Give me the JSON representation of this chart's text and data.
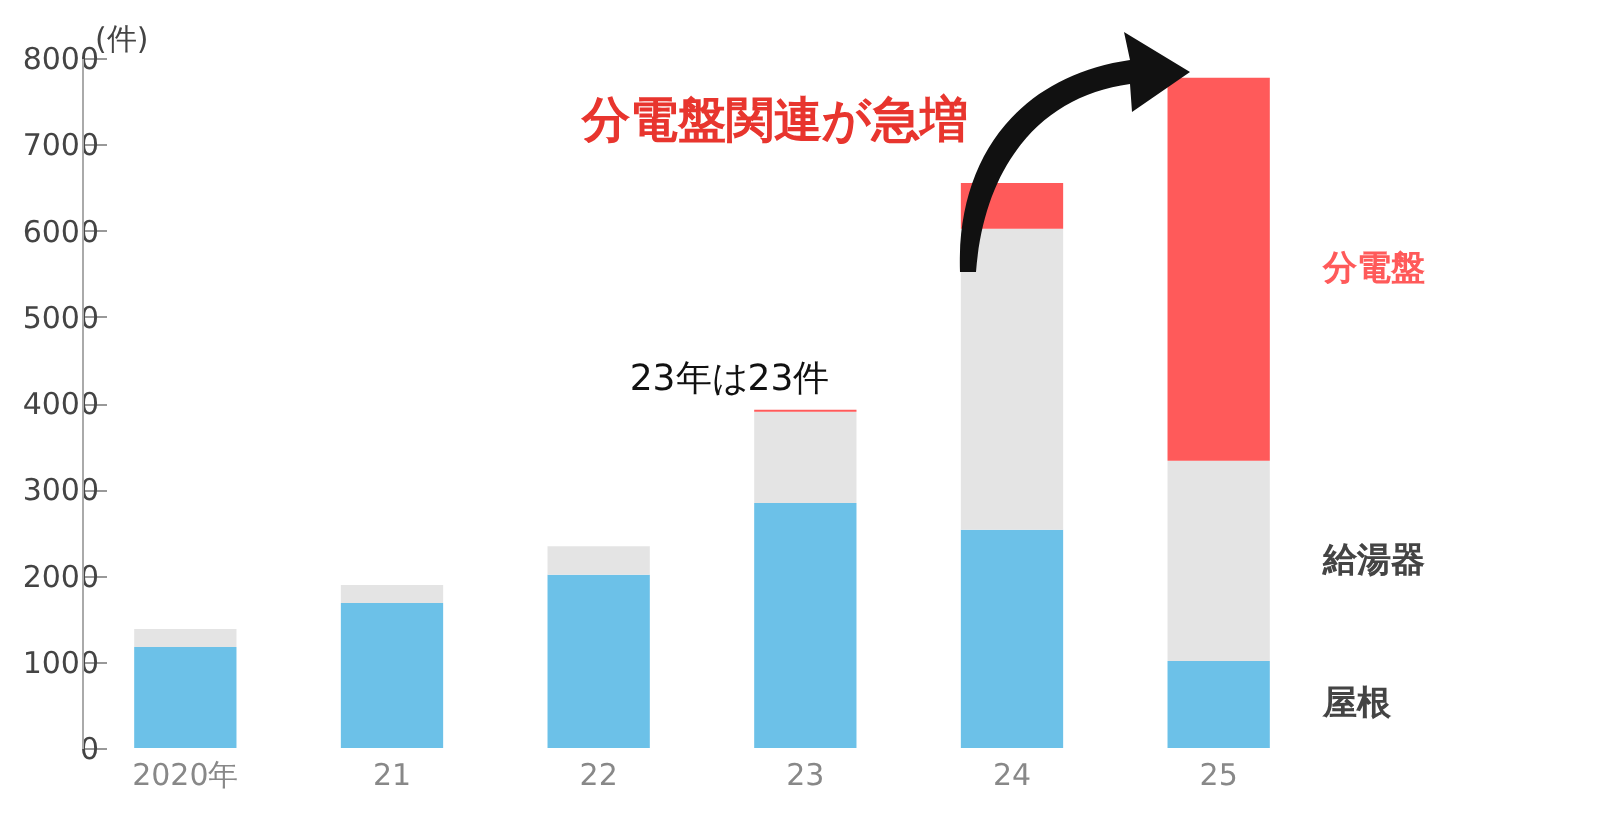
{
  "chart_data": {
    "type": "bar",
    "stacked": true,
    "ylabel": "(件)",
    "categories": [
      "2020年",
      "21",
      "22",
      "23",
      "24",
      "25"
    ],
    "series": [
      {
        "name": "屋根",
        "color": "#6cc1e8",
        "values": [
          1170,
          1680,
          2010,
          2840,
          2530,
          1010
        ]
      },
      {
        "name": "給湯器",
        "color": "#e4e4e4",
        "values": [
          210,
          210,
          330,
          1060,
          3490,
          2320
        ]
      },
      {
        "name": "分電盤",
        "color": "#ff5a5a",
        "values": [
          0,
          0,
          0,
          23,
          530,
          4440
        ]
      }
    ],
    "ylim": [
      0,
      8000
    ],
    "yticks": [
      0,
      1000,
      2000,
      3000,
      4000,
      5000,
      6000,
      7000,
      8000
    ],
    "grid": false,
    "legend": "right",
    "annotations": [
      "分電盤関連が急増",
      {
        "text": "23年は23件",
        "x": "23",
        "y": 3920
      }
    ]
  }
}
